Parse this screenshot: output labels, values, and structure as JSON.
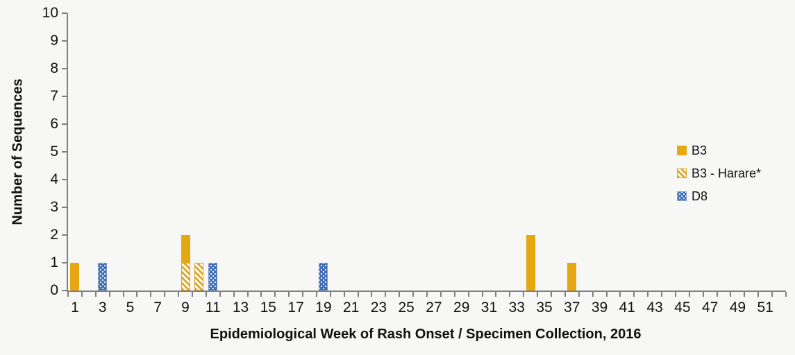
{
  "chart_data": {
    "type": "bar",
    "stacked": true,
    "title": "",
    "xlabel": "Epidemiological Week of Rash Onset / Specimen Collection, 2016",
    "ylabel": "Number of Sequences",
    "ylim": [
      0,
      10
    ],
    "ytick_step": 1,
    "x_range": [
      1,
      52
    ],
    "xtick_label_weeks": [
      1,
      3,
      5,
      7,
      9,
      11,
      13,
      15,
      17,
      19,
      21,
      23,
      25,
      27,
      29,
      31,
      33,
      35,
      37,
      39,
      41,
      43,
      45,
      47,
      49,
      51
    ],
    "grid": false,
    "legend_position": "middle-right",
    "background_color": "#F7F7F6",
    "axis_color": "#7F7F7F",
    "stack_order": [
      "B3 - Harare*",
      "B3",
      "D8"
    ],
    "series": [
      {
        "name": "B3",
        "pattern": "solid",
        "color": "#E5A712",
        "border": "#E5A712",
        "points": {
          "1": 1,
          "9": 1,
          "34": 2,
          "37": 1
        }
      },
      {
        "name": "B3 - Harare*",
        "pattern": "diagonal-hatch",
        "color": "#E0A41E",
        "border": "#D9A02A",
        "points": {
          "9": 1,
          "10": 1
        }
      },
      {
        "name": "D8",
        "pattern": "dots",
        "color": "#3E6BB5",
        "border": "#7E99CC",
        "points": {
          "3": 1,
          "11": 1,
          "19": 1
        }
      }
    ]
  }
}
